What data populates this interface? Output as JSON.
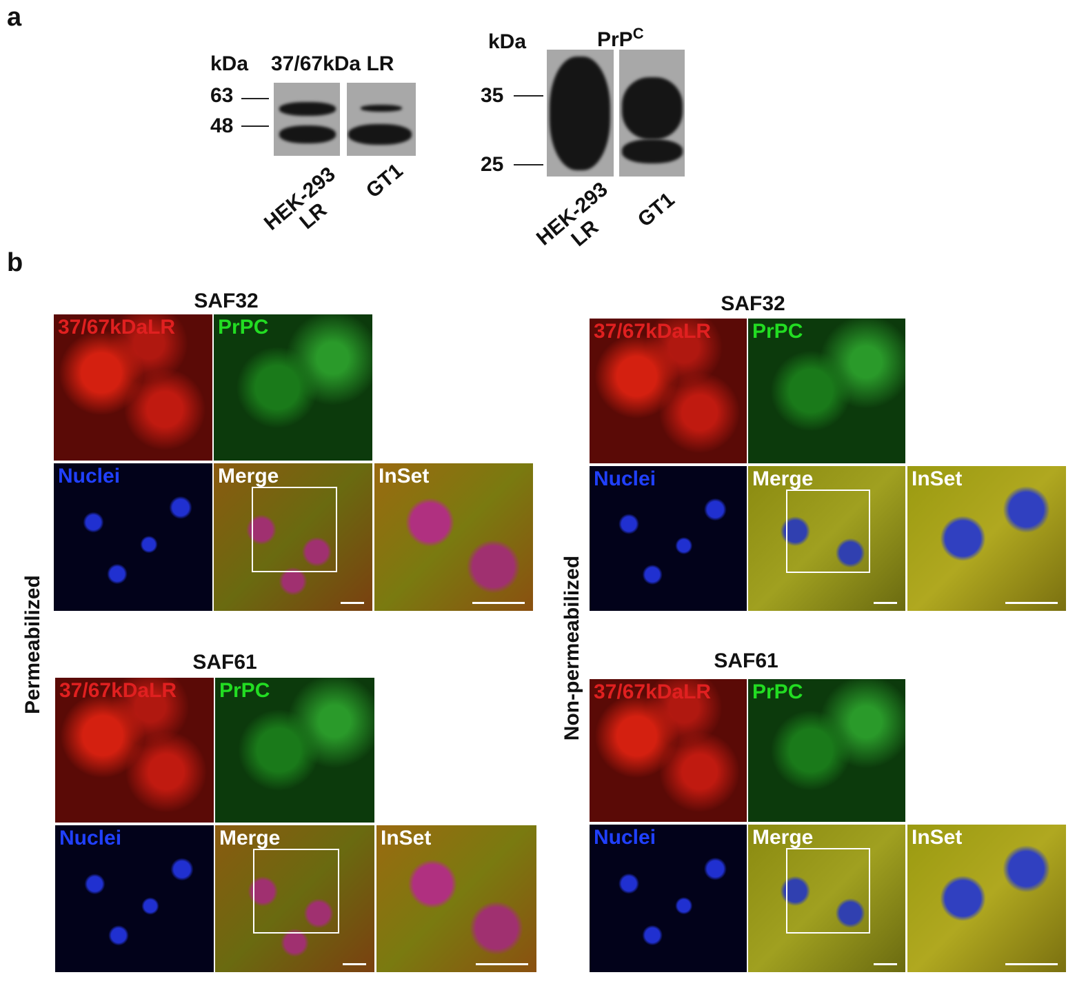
{
  "panel_a": {
    "label": "a",
    "blots": [
      {
        "unit": "kDa",
        "title": {
          "text": "37/67kDa LR"
        },
        "markers": [
          "63",
          "48"
        ],
        "lanes": [
          [
            "HEK-293",
            "LR"
          ],
          [
            "GT1"
          ]
        ]
      },
      {
        "unit": "kDa",
        "title": {
          "text": "PrP",
          "sup": "C"
        },
        "markers": [
          "35",
          "25"
        ],
        "lanes": [
          [
            "HEK-293",
            "LR"
          ],
          [
            "GT1"
          ]
        ]
      }
    ]
  },
  "panel_b": {
    "label": "b",
    "conditions": [
      {
        "label": "Permeabilized",
        "groups": [
          {
            "antibody": "SAF32",
            "tiles": [
              "37/67kDaLR",
              "PrPC",
              "Nuclei",
              "Merge",
              "InSet"
            ]
          },
          {
            "antibody": "SAF61",
            "tiles": [
              "37/67kDaLR",
              "PrPC",
              "Nuclei",
              "Merge",
              "InSet"
            ]
          }
        ]
      },
      {
        "label": "Non-permeabilized",
        "groups": [
          {
            "antibody": "SAF32",
            "tiles": [
              "37/67kDaLR",
              "PrPC",
              "Nuclei",
              "Merge",
              "InSet"
            ]
          },
          {
            "antibody": "SAF61",
            "tiles": [
              "37/67kDaLR",
              "PrPC",
              "Nuclei",
              "Merge",
              "InSet"
            ]
          }
        ]
      }
    ]
  }
}
